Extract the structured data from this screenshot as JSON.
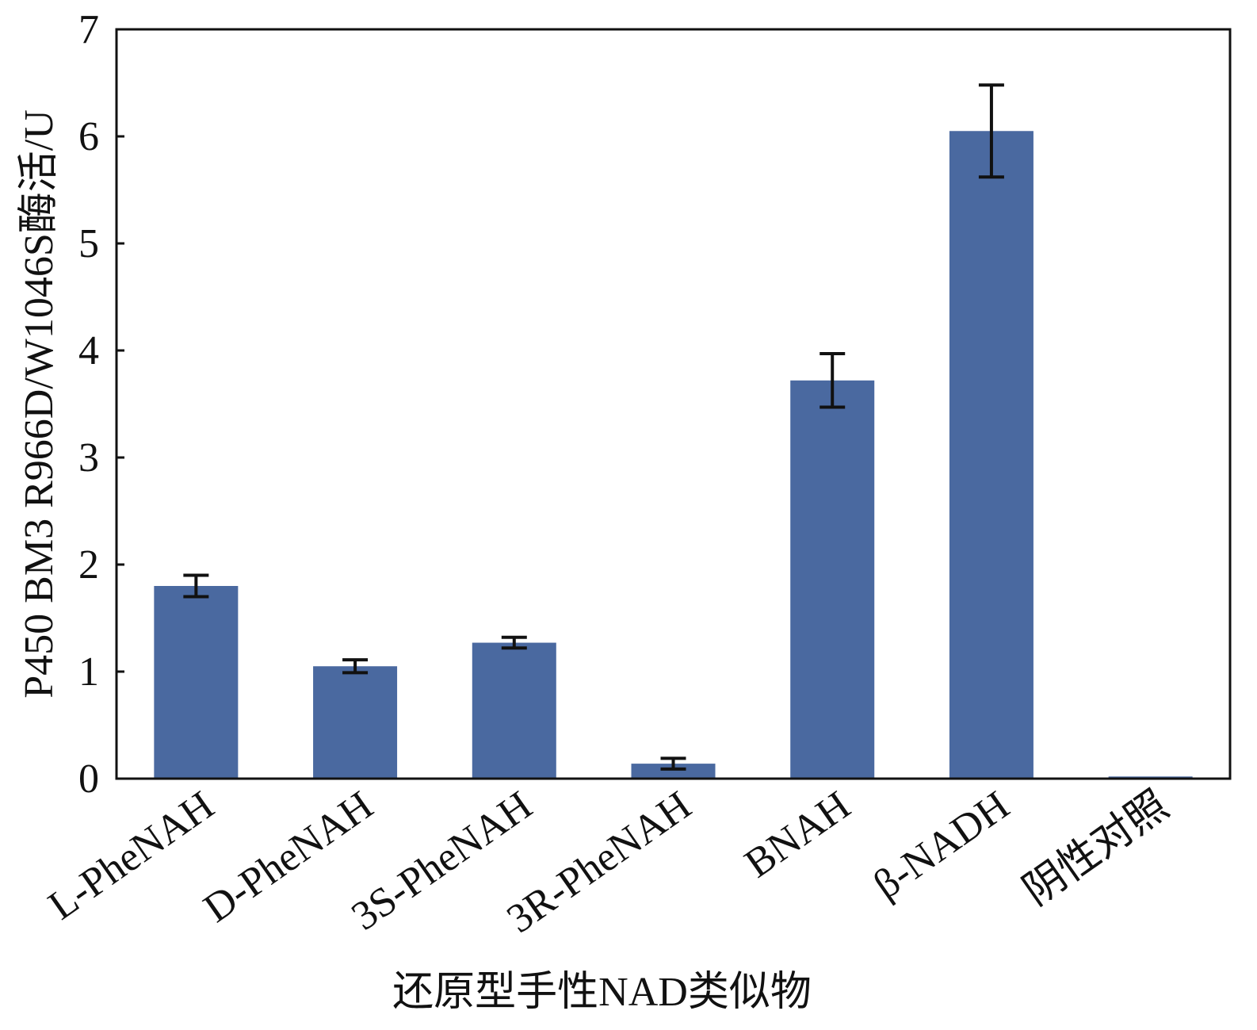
{
  "chart_data": {
    "type": "bar",
    "categories": [
      "L-PheNAH",
      "D-PheNAH",
      "3S-PheNAH",
      "3R-PheNAH",
      "BNAH",
      "β-NADH",
      "阴性对照"
    ],
    "values": [
      1.8,
      1.05,
      1.27,
      0.14,
      3.72,
      6.05,
      0.02
    ],
    "error": [
      0.1,
      0.06,
      0.05,
      0.05,
      0.25,
      0.43,
      0.0
    ],
    "title": "",
    "xlabel": "还原型手性NAD类似物",
    "ylabel": "P450 BM3 R966D/W1046S酶活/U",
    "ylim": [
      0,
      7
    ],
    "yticks": [
      0,
      1,
      2,
      3,
      4,
      5,
      6,
      7
    ],
    "grid": false,
    "legend": "none",
    "bar_color": "#4a69a0",
    "error_color": "#111111"
  }
}
